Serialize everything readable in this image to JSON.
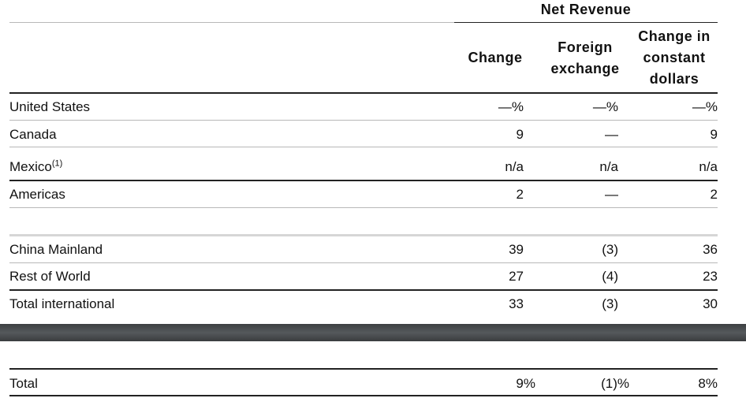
{
  "header": {
    "group_title": "Net Revenue",
    "col_change": "Change",
    "col_fx_line1": "Foreign",
    "col_fx_line2": "exchange",
    "col_cc_line1": "Change in",
    "col_cc_line2": "constant",
    "col_cc_line3": "dollars"
  },
  "rows": [
    {
      "label": "United States",
      "sup": "",
      "change": "—%",
      "fx": "—%",
      "cc": "—%"
    },
    {
      "label": "Canada",
      "sup": "",
      "change": "9",
      "fx": "—",
      "cc": "9"
    },
    {
      "label": "Mexico",
      "sup": "(1)",
      "change": "n/a",
      "fx": "n/a",
      "cc": "n/a"
    },
    {
      "label": "Americas",
      "sup": "",
      "change": "2",
      "fx": "—",
      "cc": "2"
    },
    {
      "label": "China Mainland",
      "sup": "",
      "change": "39",
      "fx": "(3)",
      "cc": "36"
    },
    {
      "label": "Rest of World",
      "sup": "",
      "change": "27",
      "fx": "(4)",
      "cc": "23"
    },
    {
      "label": "Total international",
      "sup": "",
      "change": "33",
      "fx": "(3)",
      "cc": "30"
    }
  ],
  "total": {
    "label": "Total",
    "change": "9%",
    "fx": "(1)%",
    "cc": "8%"
  }
}
